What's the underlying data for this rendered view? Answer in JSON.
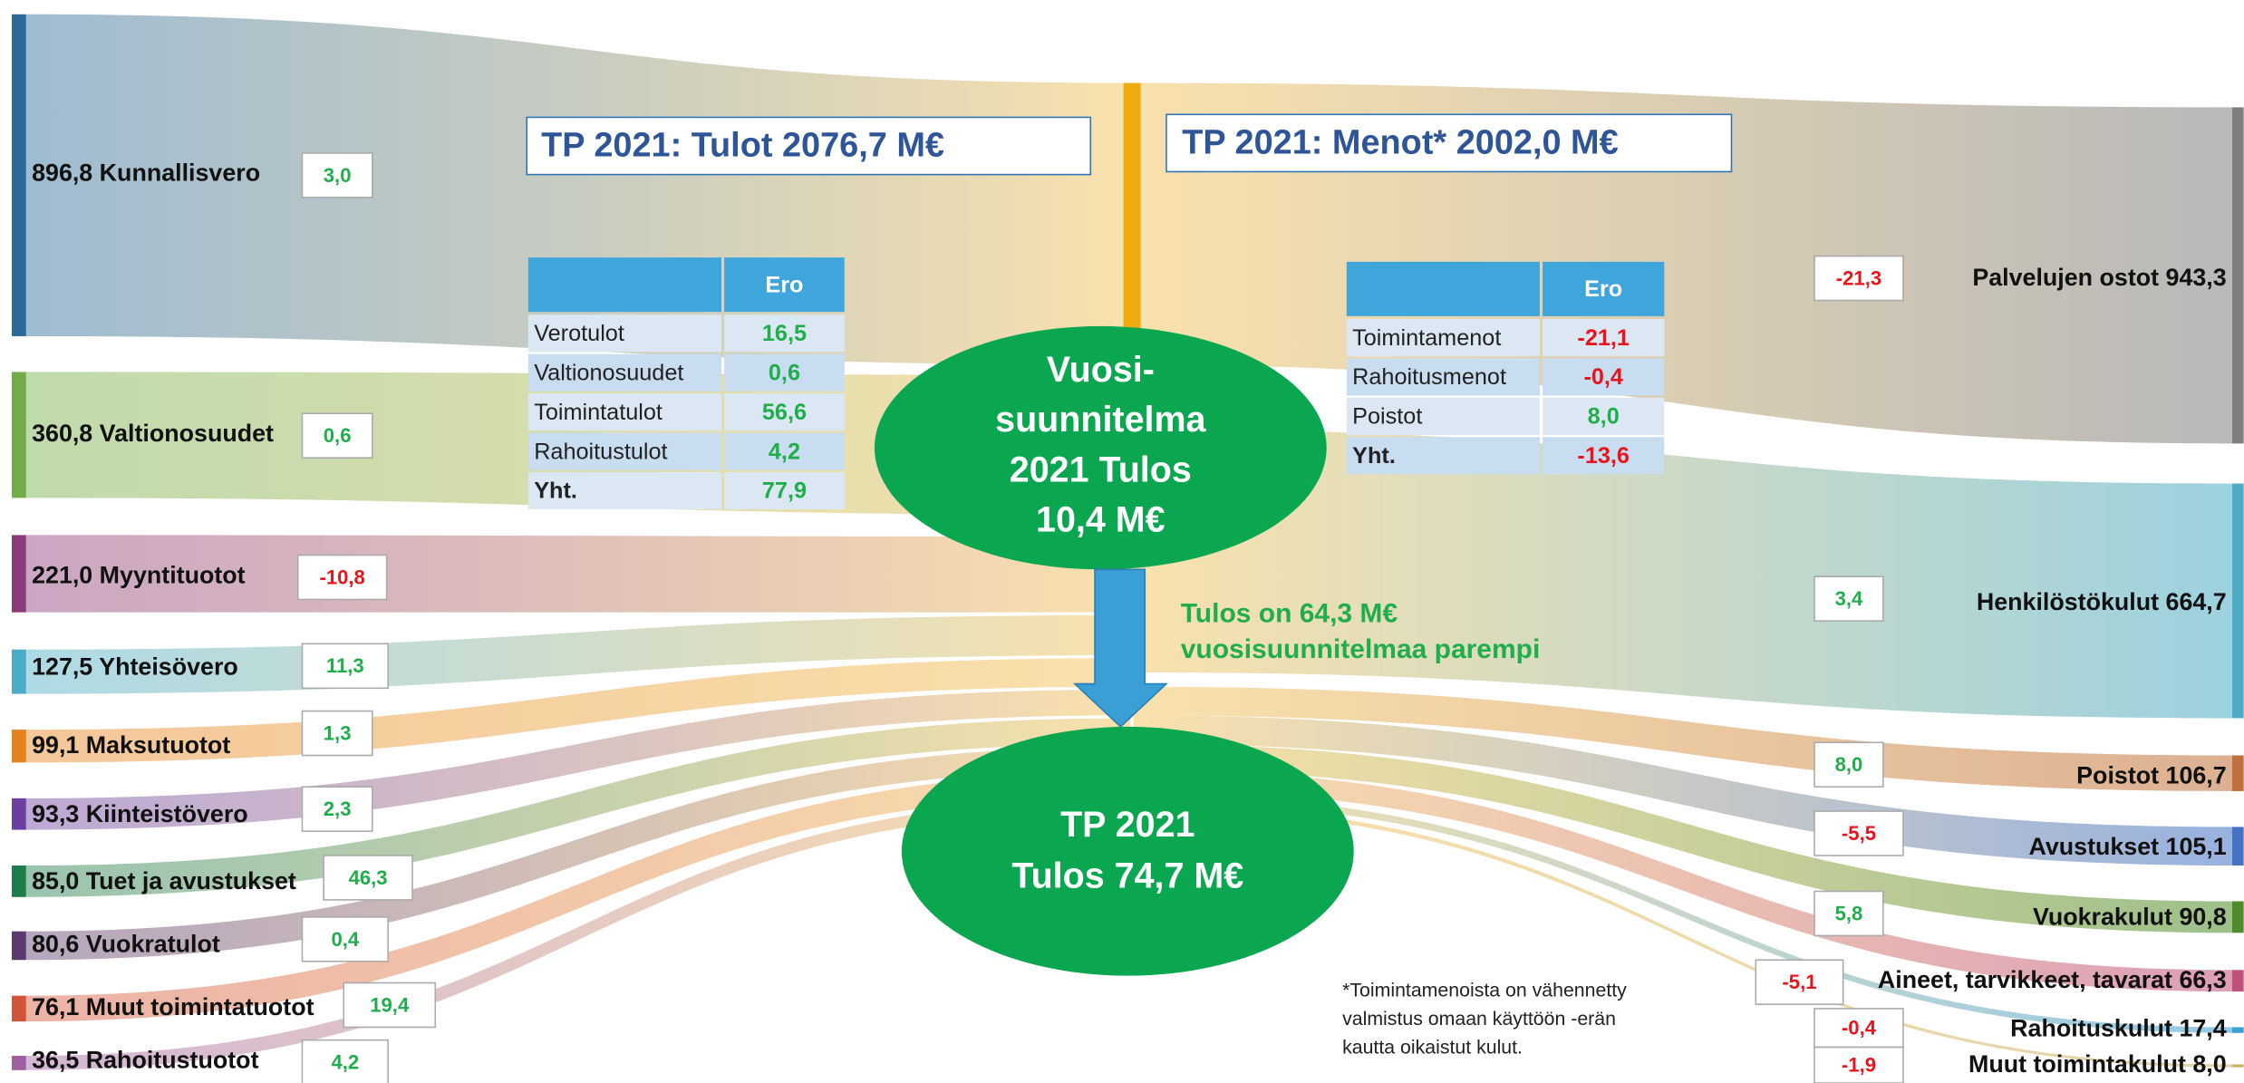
{
  "titles": {
    "income": "TP 2021: Tulot 2076,7 M€",
    "expenses": "TP 2021: Menot* 2002,0 M€"
  },
  "income": [
    {
      "label": "896,8 Kunnallisvero",
      "ero": "3,0"
    },
    {
      "label": "360,8 Valtionosuudet",
      "ero": "0,6"
    },
    {
      "label": "221,0 Myyntituotot",
      "ero": "-10,8"
    },
    {
      "label": "127,5 Yhteisövero",
      "ero": "11,3"
    },
    {
      "label": "99,1 Maksutuotot",
      "ero": "1,3"
    },
    {
      "label": "93,3 Kiinteistövero",
      "ero": "2,3"
    },
    {
      "label": "85,0 Tuet ja avustukset",
      "ero": "46,3"
    },
    {
      "label": "80,6 Vuokratulot",
      "ero": "0,4"
    },
    {
      "label": "76,1 Muut toimintatuotot",
      "ero": "19,4"
    },
    {
      "label": "36,5 Rahoitustuotot",
      "ero": "4,2"
    }
  ],
  "expenses": [
    {
      "label": "Palvelujen ostot 943,3",
      "ero": "-21,3"
    },
    {
      "label": "Henkilöstökulut 664,7",
      "ero": "3,4"
    },
    {
      "label": "Poistot 106,7",
      "ero": "8,0"
    },
    {
      "label": "Avustukset 105,1",
      "ero": "-5,5"
    },
    {
      "label": "Vuokrakulut 90,8",
      "ero": "5,8"
    },
    {
      "label": "Aineet, tarvikkeet, tavarat 66,3",
      "ero": "-5,1"
    },
    {
      "label": "Rahoituskulut 17,4",
      "ero": "-0,4"
    },
    {
      "label": "Muut toimintakulut 8,0",
      "ero": "-1,9"
    }
  ],
  "income_table": {
    "header": "Ero",
    "rows": [
      [
        "Verotulot",
        "16,5"
      ],
      [
        "Valtionosuudet",
        "0,6"
      ],
      [
        "Toimintatulot",
        "56,6"
      ],
      [
        "Rahoitustulot",
        "4,2"
      ],
      [
        "Yht.",
        "77,9"
      ]
    ]
  },
  "expense_table": {
    "header": "Ero",
    "rows": [
      [
        "Toimintamenot",
        "-21,1"
      ],
      [
        "Rahoitusmenot",
        "-0,4"
      ],
      [
        "Poistot",
        "8,0"
      ],
      [
        "Yht.",
        "-13,6"
      ]
    ]
  },
  "plan": [
    "Vuosi-",
    "suunnitelma",
    "2021 Tulos",
    "10,4 M€"
  ],
  "actual": [
    "TP 2021",
    "Tulos 74,7 M€"
  ],
  "difference": [
    "Tulos on 64,3 M€",
    "vuosisuunnitelmaa parempi"
  ],
  "note": [
    "*Toimintamenoista on vähennetty",
    "valmistus omaan käyttöön -erän",
    "kautta oikaistut kulut."
  ]
}
